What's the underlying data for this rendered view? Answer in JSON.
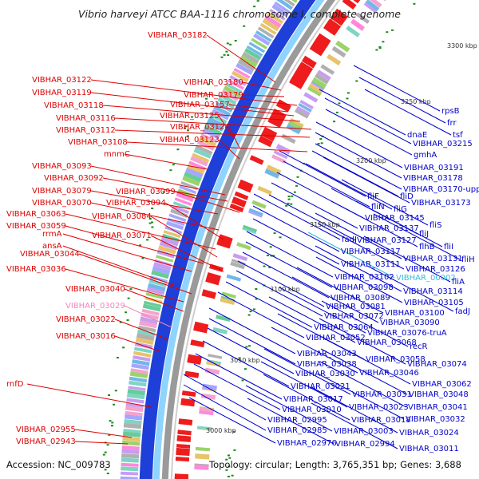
{
  "title": "Vibrio harveyi ATCC BAA-1116 chromosome I, complete genome",
  "accession": "Accession: NC_009783",
  "summary": "Topology: circular; Length: 3,765,351 bp; Genes: 3,688",
  "scale_labels": [
    "3300 kbp",
    "3250 kbp",
    "3200 kbp",
    "3150 kbp",
    "3100 kbp",
    "3050 kbp",
    "3000 kbp"
  ],
  "colors": {
    "reverse_strand_label": "#dd0000",
    "forward_strand_label": "#0000cc",
    "highlighted_label_pink": "#ee88bb",
    "highlighted_label_cyan": "#33bbdd",
    "backbone": "#9a9a9a",
    "cds_forward": "#1e3fd8",
    "cds_reverse": "#ee1c1c",
    "gc_skew_green": "#1a8a1a"
  },
  "left_labels": [
    {
      "text": "VIBHAR_03182",
      "color": "red"
    },
    {
      "text": "VIBHAR_03180",
      "color": "red"
    },
    {
      "text": "VIBHAR_03179",
      "color": "red"
    },
    {
      "text": "VIBHAR_03122",
      "color": "red"
    },
    {
      "text": "VIBHAR_03157",
      "color": "red"
    },
    {
      "text": "VIBHAR_03119",
      "color": "red"
    },
    {
      "text": "VIBHAR_03118",
      "color": "red"
    },
    {
      "text": "VIBHAR_03125",
      "color": "red"
    },
    {
      "text": "VIBHAR_03116",
      "color": "red"
    },
    {
      "text": "VIBHAR_03124",
      "color": "red"
    },
    {
      "text": "VIBHAR_03112",
      "color": "red"
    },
    {
      "text": "VIBHAR_03123",
      "color": "red"
    },
    {
      "text": "VIBHAR_03108",
      "color": "red"
    },
    {
      "text": "mnmC",
      "color": "red"
    },
    {
      "text": "VIBHAR_03093",
      "color": "red"
    },
    {
      "text": "VIBHAR_03092",
      "color": "red"
    },
    {
      "text": "VIBHAR_03079",
      "color": "red"
    },
    {
      "text": "VIBHAR_03099",
      "color": "red"
    },
    {
      "text": "VIBHAR_03070",
      "color": "red"
    },
    {
      "text": "VIBHAR_03094",
      "color": "red"
    },
    {
      "text": "VIBHAR_03063",
      "color": "red"
    },
    {
      "text": "VIBHAR_03084",
      "color": "red"
    },
    {
      "text": "VIBHAR_03059",
      "color": "red"
    },
    {
      "text": "rrmA",
      "color": "red"
    },
    {
      "text": "VIBHAR_03071",
      "color": "red"
    },
    {
      "text": "ansA",
      "color": "red"
    },
    {
      "text": "VIBHAR_03044",
      "color": "red"
    },
    {
      "text": "VIBHAR_03036",
      "color": "red"
    },
    {
      "text": "VIBHAR_03040",
      "color": "red"
    },
    {
      "text": "VIBHAR_03029",
      "color": "pink"
    },
    {
      "text": "VIBHAR_03022",
      "color": "red"
    },
    {
      "text": "VIBHAR_03016",
      "color": "red"
    },
    {
      "text": "rnfD",
      "color": "red"
    },
    {
      "text": "VIBHAR_02955",
      "color": "red"
    },
    {
      "text": "VIBHAR_02943",
      "color": "red"
    }
  ],
  "right_labels": [
    {
      "text": "rpsB",
      "color": "blue"
    },
    {
      "text": "frr",
      "color": "blue"
    },
    {
      "text": "dnaE",
      "color": "blue"
    },
    {
      "text": "tsf",
      "color": "blue"
    },
    {
      "text": "VIBHAR_03215",
      "color": "blue"
    },
    {
      "text": "gmhA",
      "color": "blue"
    },
    {
      "text": "VIBHAR_03191",
      "color": "blue"
    },
    {
      "text": "VIBHAR_03178",
      "color": "blue"
    },
    {
      "text": "VIBHAR_03170-upp",
      "color": "blue"
    },
    {
      "text": "fliF",
      "color": "blue"
    },
    {
      "text": "fliD",
      "color": "blue"
    },
    {
      "text": "VIBHAR_03173",
      "color": "blue"
    },
    {
      "text": "fliN",
      "color": "blue"
    },
    {
      "text": "fliG",
      "color": "blue"
    },
    {
      "text": "VIBHAR_03145",
      "color": "blue"
    },
    {
      "text": "fliS",
      "color": "blue"
    },
    {
      "text": "VIBHAR_03137",
      "color": "blue"
    },
    {
      "text": "fadJ",
      "color": "blue"
    },
    {
      "text": "fliJ",
      "color": "blue"
    },
    {
      "text": "VIBHAR_03127",
      "color": "blue"
    },
    {
      "text": "flhB",
      "color": "blue"
    },
    {
      "text": "fliI",
      "color": "blue"
    },
    {
      "text": "VIBHAR_03117",
      "color": "blue"
    },
    {
      "text": "VIBHAR_03131",
      "color": "blue"
    },
    {
      "text": "fliH",
      "color": "blue"
    },
    {
      "text": "VIBHAR_03111",
      "color": "blue"
    },
    {
      "text": "VIBHAR_03126",
      "color": "blue"
    },
    {
      "text": "VIBHAR_03102",
      "color": "blue"
    },
    {
      "text": "VIBHAR_00002",
      "color": "cyan"
    },
    {
      "text": "fliA",
      "color": "blue"
    },
    {
      "text": "VIBHAR_03098",
      "color": "blue"
    },
    {
      "text": "VIBHAR_03114",
      "color": "blue"
    },
    {
      "text": "VIBHAR_03089",
      "color": "blue"
    },
    {
      "text": "VIBHAR_03105",
      "color": "blue"
    },
    {
      "text": "VIBHAR_03081",
      "color": "blue"
    },
    {
      "text": "fadJ",
      "color": "blue"
    },
    {
      "text": "VIBHAR_03072",
      "color": "blue"
    },
    {
      "text": "VIBHAR_03100",
      "color": "blue"
    },
    {
      "text": "VIBHAR_03090",
      "color": "blue"
    },
    {
      "text": "VIBHAR_03064",
      "color": "blue"
    },
    {
      "text": "VIBHAR_03076-truA",
      "color": "blue"
    },
    {
      "text": "VIBHAR_03052",
      "color": "blue"
    },
    {
      "text": "VIBHAR_03068",
      "color": "blue"
    },
    {
      "text": "recR",
      "color": "blue"
    },
    {
      "text": "VIBHAR_03043",
      "color": "blue"
    },
    {
      "text": "VIBHAR_03058",
      "color": "blue"
    },
    {
      "text": "VIBHAR_03074",
      "color": "blue"
    },
    {
      "text": "VIBHAR_03038",
      "color": "blue"
    },
    {
      "text": "VIBHAR_03030",
      "color": "blue"
    },
    {
      "text": "VIBHAR_03046",
      "color": "blue"
    },
    {
      "text": "VIBHAR_03062",
      "color": "blue"
    },
    {
      "text": "VIBHAR_03021",
      "color": "blue"
    },
    {
      "text": "VIBHAR_03031",
      "color": "blue"
    },
    {
      "text": "VIBHAR_03048",
      "color": "blue"
    },
    {
      "text": "VIBHAR_03017",
      "color": "blue"
    },
    {
      "text": "VIBHAR_03023",
      "color": "blue"
    },
    {
      "text": "VIBHAR_03041",
      "color": "blue"
    },
    {
      "text": "VIBHAR_03010",
      "color": "blue"
    },
    {
      "text": "VIBHAR_03018",
      "color": "blue"
    },
    {
      "text": "VIBHAR_03032",
      "color": "blue"
    },
    {
      "text": "VIBHAR_02995",
      "color": "blue"
    },
    {
      "text": "VIBHAR_03003",
      "color": "blue"
    },
    {
      "text": "VIBHAR_03024",
      "color": "blue"
    },
    {
      "text": "VIBHAR_02985",
      "color": "blue"
    },
    {
      "text": "VIBHAR_02994",
      "color": "blue"
    },
    {
      "text": "VIBHAR_02976",
      "color": "blue"
    },
    {
      "text": "VIBHAR_03011",
      "color": "blue"
    }
  ]
}
